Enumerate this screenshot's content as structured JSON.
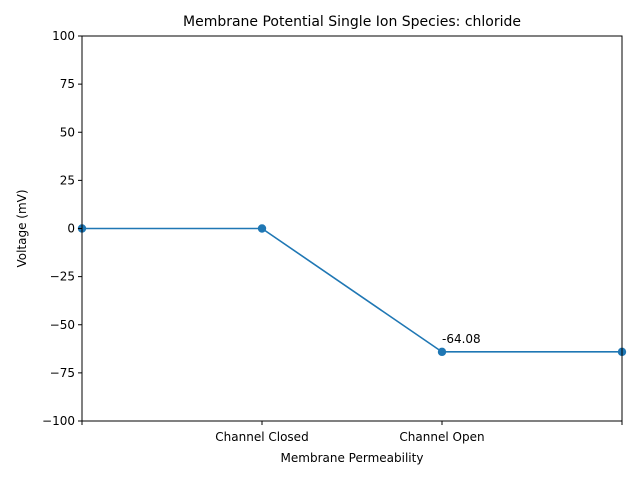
{
  "chart_data": {
    "type": "line",
    "title": "Membrane Potential Single Ion Species: chloride",
    "xlabel": "Membrane Permeability",
    "ylabel": "Voltage (mV)",
    "x": [
      0,
      1,
      2,
      3
    ],
    "xlim": [
      0,
      3
    ],
    "xticks": [
      {
        "value": 0,
        "label": ""
      },
      {
        "value": 1,
        "label": "Channel Closed"
      },
      {
        "value": 2,
        "label": "Channel Open"
      },
      {
        "value": 3,
        "label": ""
      }
    ],
    "ylim": [
      -100,
      100
    ],
    "yticks": [
      -100,
      -75,
      -50,
      -25,
      0,
      25,
      50,
      75,
      100
    ],
    "ytick_labels": [
      "−100",
      "−75",
      "−50",
      "−25",
      "0",
      "25",
      "50",
      "75",
      "100"
    ],
    "series": [
      {
        "name": "chloride",
        "color": "#1f77b4",
        "values": [
          0,
          0,
          -64.08,
          -64.08
        ]
      }
    ],
    "annotations": [
      {
        "x": 2,
        "y": -64.08,
        "text": "-64.08"
      }
    ],
    "grid": false,
    "legend": "none"
  }
}
